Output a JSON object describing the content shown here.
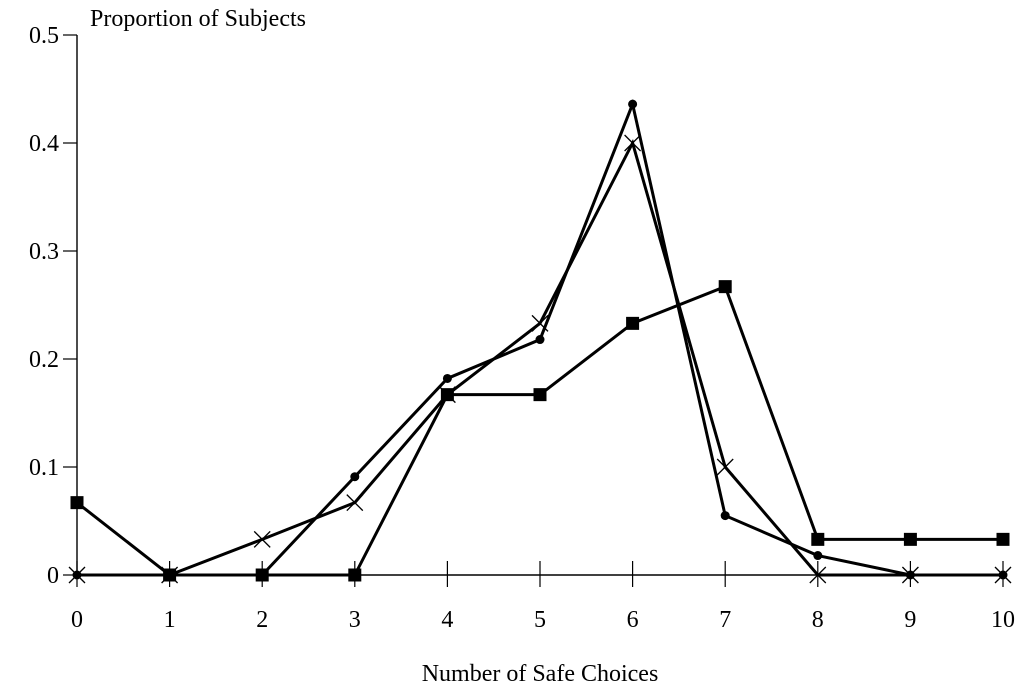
{
  "chart_data": {
    "type": "line",
    "ylabel": "Proportion of Subjects",
    "xlabel": "Number of Safe Choices",
    "x": [
      0,
      1,
      2,
      3,
      4,
      5,
      6,
      7,
      8,
      9,
      10
    ],
    "xlim": [
      0,
      10
    ],
    "ylim": [
      0,
      0.5
    ],
    "xticks": [
      "0",
      "1",
      "2",
      "3",
      "4",
      "5",
      "6",
      "7",
      "8",
      "9",
      "10"
    ],
    "yticks": [
      "0",
      "0.1",
      "0.2",
      "0.3",
      "0.4",
      "0.5"
    ],
    "ytick_values": [
      0,
      0.1,
      0.2,
      0.3,
      0.4,
      0.5
    ],
    "grid": false,
    "legend": false,
    "series": [
      {
        "marker": "cross",
        "values": [
          0,
          0,
          0.033,
          0.067,
          0.167,
          0.233,
          0.4,
          0.1,
          0,
          0,
          0
        ]
      },
      {
        "marker": "circle",
        "values": [
          0,
          0,
          0,
          0.091,
          0.182,
          0.218,
          0.436,
          0.055,
          0.018,
          0,
          0
        ]
      },
      {
        "marker": "square",
        "values": [
          0.067,
          0,
          0,
          0,
          0.167,
          0.167,
          0.233,
          0.267,
          0.033,
          0.033,
          0.033
        ]
      }
    ],
    "color": "#000000"
  }
}
